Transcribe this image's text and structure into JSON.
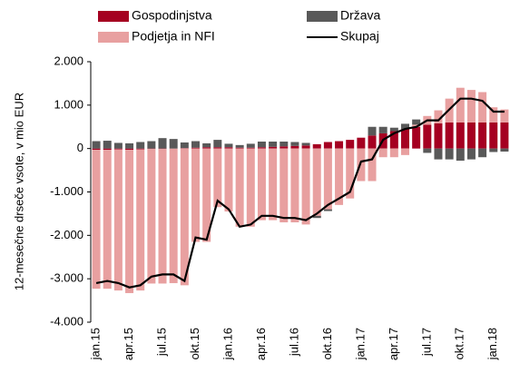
{
  "chart_data": {
    "type": "bar",
    "y_label": "12-mesečne drseče vsote, v mio EUR",
    "categories": [
      "jan.15",
      null,
      null,
      "apr.15",
      null,
      null,
      "jul.15",
      null,
      null,
      "okt.15",
      null,
      null,
      "jan.16",
      null,
      null,
      "apr.16",
      null,
      null,
      "jul.16",
      null,
      null,
      "okt.16",
      null,
      null,
      "jan.17",
      null,
      null,
      "apr.17",
      null,
      null,
      "jul.17",
      null,
      null,
      "okt.17",
      null,
      null,
      "jan.18",
      null
    ],
    "series": [
      {
        "name": "Gospodinjstva",
        "color": "#a50021",
        "values": [
          -30,
          -30,
          -20,
          -30,
          -20,
          -10,
          -10,
          0,
          10,
          20,
          30,
          30,
          30,
          20,
          20,
          30,
          40,
          50,
          60,
          70,
          100,
          150,
          170,
          200,
          250,
          300,
          350,
          400,
          450,
          500,
          550,
          580,
          600,
          600,
          600,
          600,
          600,
          600
        ]
      },
      {
        "name": "Podjetja in NFI",
        "color": "#e8a0a0",
        "values": [
          -3200,
          -3200,
          -3250,
          -3300,
          -3250,
          -3100,
          -3100,
          -3100,
          -3150,
          -2150,
          -2150,
          -1350,
          -1450,
          -1800,
          -1800,
          -1650,
          -1650,
          -1700,
          -1700,
          -1750,
          -1550,
          -1400,
          -1300,
          -1150,
          -750,
          -750,
          -200,
          -200,
          -150,
          50,
          200,
          300,
          550,
          800,
          750,
          700,
          350,
          300
        ]
      },
      {
        "name": "Država",
        "color": "#595959",
        "values": [
          170,
          180,
          130,
          120,
          150,
          170,
          240,
          220,
          130,
          150,
          90,
          170,
          80,
          60,
          90,
          130,
          120,
          110,
          90,
          60,
          -50,
          -40,
          0,
          0,
          0,
          200,
          150,
          80,
          120,
          120,
          -100,
          -250,
          -250,
          -280,
          -250,
          -200,
          -80,
          -70
        ]
      },
      {
        "name": "Skupaj",
        "color": "#000000",
        "type": "line",
        "values": [
          -3100,
          -3050,
          -3100,
          -3200,
          -3150,
          -2950,
          -2900,
          -2900,
          -3050,
          -2050,
          -2100,
          -1200,
          -1400,
          -1800,
          -1750,
          -1550,
          -1550,
          -1600,
          -1600,
          -1650,
          -1500,
          -1300,
          -1150,
          -1000,
          -300,
          -250,
          200,
          350,
          450,
          500,
          650,
          650,
          900,
          1150,
          1150,
          1100,
          850,
          850
        ]
      }
    ],
    "stacked": true,
    "ylim": [
      -4000,
      2000
    ],
    "yticks": [
      {
        "value": -4000,
        "label": "-4.000"
      },
      {
        "value": -3000,
        "label": "-3.000"
      },
      {
        "value": -2000,
        "label": "-2.000"
      },
      {
        "value": -1000,
        "label": "-1.000"
      },
      0,
      {
        "value": 1000,
        "label": "1.000"
      },
      {
        "value": 2000,
        "label": "2.000"
      }
    ],
    "grid": false
  }
}
